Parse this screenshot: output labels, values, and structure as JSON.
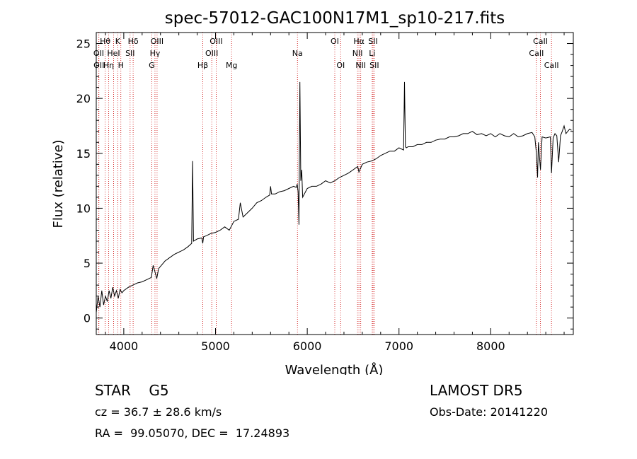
{
  "chart_data": {
    "type": "line",
    "title": "spec-57012-GAC100N17M1_sp10-217.fits",
    "xlabel": "Wavelength (Å)",
    "ylabel": "Flux (relative)",
    "xlim": [
      3700,
      8900
    ],
    "ylim": [
      -1.5,
      26
    ],
    "x_ticks": [
      4000,
      5000,
      6000,
      7000,
      8000
    ],
    "y_ticks": [
      0,
      5,
      10,
      15,
      20,
      25
    ],
    "grid": false,
    "legend": "none",
    "series": [
      {
        "x": [
          3700,
          3720,
          3740,
          3760,
          3780,
          3800,
          3820,
          3840,
          3860,
          3880,
          3900,
          3920,
          3940,
          3960,
          3980,
          4000,
          4050,
          4100,
          4150,
          4200,
          4250,
          4300,
          4320,
          4340,
          4360,
          4380,
          4400,
          4450,
          4500,
          4550,
          4600,
          4650,
          4700,
          4740,
          4750,
          4760,
          4800,
          4850,
          4861,
          4870,
          4900,
          4950,
          5000,
          5050,
          5100,
          5150,
          5200,
          5250,
          5270,
          5300,
          5350,
          5400,
          5450,
          5500,
          5550,
          5590,
          5600,
          5610,
          5650,
          5700,
          5750,
          5800,
          5850,
          5880,
          5890,
          5900,
          5910,
          5920,
          5930,
          5940,
          5950,
          6000,
          6050,
          6100,
          6150,
          6200,
          6250,
          6300,
          6350,
          6400,
          6450,
          6500,
          6550,
          6563,
          6600,
          6650,
          6700,
          6750,
          6800,
          6850,
          6900,
          6950,
          7000,
          7050,
          7060,
          7070,
          7080,
          7100,
          7150,
          7200,
          7250,
          7300,
          7350,
          7400,
          7450,
          7500,
          7550,
          7600,
          7650,
          7700,
          7750,
          7800,
          7850,
          7900,
          7950,
          8000,
          8050,
          8100,
          8150,
          8200,
          8250,
          8300,
          8350,
          8400,
          8450,
          8480,
          8498,
          8510,
          8520,
          8542,
          8560,
          8600,
          8650,
          8662,
          8680,
          8700,
          8720,
          8740,
          8760,
          8780,
          8800,
          8820,
          8840,
          8860,
          8880
        ],
        "y": [
          0.5,
          2.0,
          1.0,
          2.5,
          1.2,
          2.0,
          1.5,
          2.5,
          1.8,
          2.8,
          2.0,
          2.5,
          1.8,
          2.6,
          2.3,
          2.5,
          2.8,
          3.0,
          3.2,
          3.3,
          3.5,
          3.7,
          4.8,
          4.2,
          3.6,
          4.5,
          4.7,
          5.2,
          5.5,
          5.8,
          6.0,
          6.2,
          6.5,
          6.8,
          14.3,
          7.0,
          7.2,
          7.3,
          6.8,
          7.4,
          7.5,
          7.7,
          7.8,
          8.0,
          8.3,
          8.0,
          8.8,
          9.0,
          10.5,
          9.2,
          9.6,
          10.0,
          10.5,
          10.7,
          11.0,
          11.2,
          12.0,
          11.3,
          11.3,
          11.5,
          11.6,
          11.8,
          12.0,
          11.9,
          12.2,
          11.5,
          8.5,
          21.5,
          12.5,
          13.5,
          11.0,
          11.8,
          12.0,
          12.0,
          12.2,
          12.5,
          12.3,
          12.5,
          12.8,
          13.0,
          13.2,
          13.5,
          13.8,
          13.3,
          14.0,
          14.2,
          14.3,
          14.5,
          14.8,
          15.0,
          15.2,
          15.2,
          15.5,
          15.3,
          21.5,
          15.6,
          15.5,
          15.6,
          15.6,
          15.8,
          15.8,
          16.0,
          16.0,
          16.2,
          16.3,
          16.3,
          16.5,
          16.5,
          16.6,
          16.8,
          16.8,
          17.0,
          16.7,
          16.8,
          16.6,
          16.8,
          16.5,
          16.8,
          16.6,
          16.5,
          16.8,
          16.5,
          16.6,
          16.8,
          16.9,
          16.5,
          15.0,
          12.8,
          16.0,
          13.5,
          16.5,
          16.4,
          16.5,
          13.2,
          16.4,
          16.8,
          16.6,
          14.2,
          16.6,
          17.0,
          17.5,
          16.8,
          17.0,
          17.2,
          17.1
        ]
      }
    ],
    "lines": [
      {
        "label": "Hθ",
        "x": 3797,
        "row": 0
      },
      {
        "label": "K",
        "x": 3934,
        "row": 0
      },
      {
        "label": "Hδ",
        "x": 4102,
        "row": 0
      },
      {
        "label": "OIII",
        "x": 4363,
        "row": 0
      },
      {
        "label": "OIII",
        "x": 5007,
        "row": 0
      },
      {
        "label": "OI",
        "x": 6300,
        "row": 0
      },
      {
        "label": "Hα",
        "x": 6563,
        "row": 0
      },
      {
        "label": "SII",
        "x": 6717,
        "row": 0
      },
      {
        "label": "CaII",
        "x": 8542,
        "row": 0
      },
      {
        "label": "OII",
        "x": 3727,
        "row": 1
      },
      {
        "label": "HeI",
        "x": 3889,
        "row": 1
      },
      {
        "label": "SII",
        "x": 4069,
        "row": 1
      },
      {
        "label": "Hγ",
        "x": 4340,
        "row": 1
      },
      {
        "label": "OIII",
        "x": 4959,
        "row": 1
      },
      {
        "label": "Na",
        "x": 5893,
        "row": 1
      },
      {
        "label": "NII",
        "x": 6548,
        "row": 1
      },
      {
        "label": "Li",
        "x": 6708,
        "row": 1
      },
      {
        "label": "CaII",
        "x": 8498,
        "row": 1
      },
      {
        "label": "OII",
        "x": 3729,
        "row": 2
      },
      {
        "label": "Hη",
        "x": 3835,
        "row": 2
      },
      {
        "label": "H",
        "x": 3968,
        "row": 2
      },
      {
        "label": "G",
        "x": 4305,
        "row": 2
      },
      {
        "label": "Hβ",
        "x": 4861,
        "row": 2
      },
      {
        "label": "Mg",
        "x": 5175,
        "row": 2
      },
      {
        "label": "OI",
        "x": 6364,
        "row": 2
      },
      {
        "label": "NII",
        "x": 6583,
        "row": 2
      },
      {
        "label": "SII",
        "x": 6731,
        "row": 2
      },
      {
        "label": "CaII",
        "x": 8662,
        "row": 2
      }
    ],
    "line_color": "#cc0000",
    "spectrum_color": "#000000"
  },
  "info": {
    "class_text": "STAR    G5",
    "survey": "LAMOST DR5",
    "cz": "cz = 36.7 ± 28.6 km/s",
    "obs_date": "Obs-Date: 20141220",
    "coords": "RA =  99.05070, DEC =  17.24893"
  }
}
